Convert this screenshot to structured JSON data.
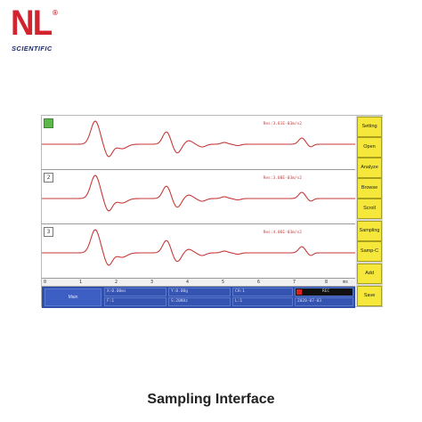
{
  "logo": {
    "brand": "NL",
    "registered": "®",
    "sub": "SCIENTIFIC"
  },
  "caption": "Sampling Interface",
  "channels": [
    {
      "label": "1",
      "active": true,
      "scale": "Res:3.81E-03m/s2"
    },
    {
      "label": "2",
      "active": false,
      "scale": "Res:3.08E-03m/s2"
    },
    {
      "label": "3",
      "active": false,
      "scale": "Res:4.06E-03m/s2"
    }
  ],
  "axis": {
    "ticks": [
      "0",
      "1",
      "2",
      "3",
      "4",
      "5",
      "6",
      "7",
      "8"
    ],
    "unit": "ms"
  },
  "status": {
    "main_button": "Main",
    "row1": [
      "X:0.00ms",
      "Y:0.00g",
      "CH:1",
      ""
    ],
    "row2": [
      "F:1",
      "S:20KHz",
      "L:1",
      "2020-07-03"
    ],
    "rec_text": "REC"
  },
  "sidebar": [
    "Setting",
    "Open",
    "Analyze",
    "Browse",
    "Scroll",
    "Sampling",
    "Samp-C",
    "Add",
    "Save"
  ],
  "colors": {
    "trace": "#c63a3a",
    "status_bar": "#2f4fa8",
    "side_button": "#f5e83a",
    "brand_red": "#d3232f",
    "brand_blue": "#1a2a6c"
  }
}
